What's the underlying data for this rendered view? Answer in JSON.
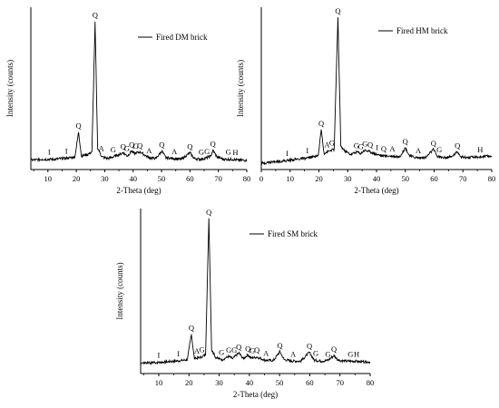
{
  "chart_data": [
    {
      "type": "line",
      "legend": "Fired DM brick",
      "xlabel": "2-Theta (deg)",
      "ylabel": "Intensity (counts)",
      "xlim": [
        4,
        80
      ],
      "xticks": [
        "10",
        "20",
        "30",
        "40",
        "50",
        "60",
        "70",
        "80"
      ],
      "grid": false,
      "legend_position": "top-right",
      "series": [
        {
          "x": [
            4,
            8,
            12,
            15,
            18,
            19.5,
            20.8,
            21.8,
            24,
            25.5,
            26.6,
            27.5,
            29,
            31,
            33,
            34.5,
            36.5,
            38,
            39.5,
            40.5,
            42.5,
            45.5,
            48,
            50.1,
            51.5,
            54,
            57,
            60,
            61.5,
            64,
            66,
            67.3,
            68.1,
            69.5,
            72,
            75,
            77,
            80
          ],
          "y": [
            7,
            8,
            8,
            9,
            10,
            11,
            41,
            12,
            14,
            17,
            175,
            22,
            11,
            9,
            11,
            13,
            16,
            12,
            18,
            15,
            17,
            10,
            9,
            18,
            10,
            9,
            8,
            16,
            9,
            8,
            10,
            12,
            19,
            11,
            8,
            8,
            7,
            7
          ]
        }
      ],
      "peak_labels": [
        {
          "label": "I",
          "x": 10.5,
          "y": 0
        },
        {
          "label": "I",
          "x": 16.5,
          "y": 0
        },
        {
          "label": "Q",
          "x": 20.8,
          "y": 41
        },
        {
          "label": "Q",
          "x": 26.6,
          "y": 175
        },
        {
          "label": "A",
          "x": 28.8,
          "y": 0
        },
        {
          "label": "G",
          "x": 33,
          "y": 0
        },
        {
          "label": "Q",
          "x": 36.5,
          "y": 16
        },
        {
          "label": "G",
          "x": 37.8,
          "y": 0
        },
        {
          "label": "Q",
          "x": 39.5,
          "y": 18
        },
        {
          "label": "Q",
          "x": 42.4,
          "y": 17
        },
        {
          "label": "G",
          "x": 41,
          "y": 0
        },
        {
          "label": "A",
          "x": 45.6,
          "y": 0
        },
        {
          "label": "Q",
          "x": 50.1,
          "y": 18
        },
        {
          "label": "A",
          "x": 54.5,
          "y": 0
        },
        {
          "label": "Q",
          "x": 60,
          "y": 16
        },
        {
          "label": "G",
          "x": 64,
          "y": 0
        },
        {
          "label": "G",
          "x": 66,
          "y": 10
        },
        {
          "label": "Q",
          "x": 68.1,
          "y": 19
        },
        {
          "label": "G",
          "x": 73.5,
          "y": 0
        },
        {
          "label": "H",
          "x": 76,
          "y": 0
        }
      ]
    },
    {
      "type": "line",
      "legend": "Fired HM brick",
      "xlabel": "2-Theta (deg)",
      "ylabel": "Intensity (counts)",
      "xlim": [
        0,
        80
      ],
      "xticks": [
        "0",
        "10",
        "20",
        "30",
        "40",
        "50",
        "60",
        "70",
        "80"
      ],
      "grid": false,
      "legend_position": "top-right",
      "series": [
        {
          "x": [
            0,
            4,
            8,
            12,
            15,
            18,
            19.8,
            20.8,
            21.8,
            23.5,
            25.3,
            26.6,
            27.6,
            29,
            31,
            33.2,
            34.5,
            35.8,
            37,
            38.5,
            40,
            42.5,
            45.5,
            48,
            50,
            51.5,
            54,
            57,
            59.8,
            61.2,
            64,
            66,
            68.1,
            69.5,
            72,
            76,
            80
          ],
          "y": [
            3,
            5,
            6,
            8,
            9,
            11,
            13,
            44,
            15,
            18,
            20,
            180,
            24,
            18,
            14,
            17,
            15,
            19,
            18,
            16,
            14,
            12,
            12,
            11,
            22,
            12,
            10,
            10,
            20,
            11,
            10,
            11,
            17,
            11,
            10,
            11,
            12
          ]
        }
      ],
      "peak_labels": [
        {
          "label": "I",
          "x": 9,
          "y": 0
        },
        {
          "label": "I",
          "x": 16,
          "y": 0
        },
        {
          "label": "Q",
          "x": 20.8,
          "y": 44
        },
        {
          "label": "A",
          "x": 22.8,
          "y": 0
        },
        {
          "label": "G",
          "x": 24.5,
          "y": 0
        },
        {
          "label": "Q",
          "x": 26.6,
          "y": 180
        },
        {
          "label": "G",
          "x": 33,
          "y": 17
        },
        {
          "label": "G",
          "x": 34.5,
          "y": 0
        },
        {
          "label": "G",
          "x": 36,
          "y": 19
        },
        {
          "label": "Q",
          "x": 37.8,
          "y": 0
        },
        {
          "label": "I",
          "x": 40.2,
          "y": 0
        },
        {
          "label": "Q",
          "x": 42.5,
          "y": 0
        },
        {
          "label": "A",
          "x": 45.5,
          "y": 0
        },
        {
          "label": "Q",
          "x": 50,
          "y": 22
        },
        {
          "label": "A",
          "x": 54.5,
          "y": 0
        },
        {
          "label": "Q",
          "x": 59.8,
          "y": 20
        },
        {
          "label": "G",
          "x": 61.8,
          "y": 0
        },
        {
          "label": "Q",
          "x": 68.1,
          "y": 17
        },
        {
          "label": "H",
          "x": 76,
          "y": 0
        }
      ]
    },
    {
      "type": "line",
      "legend": "Fired SM brick",
      "xlabel": "2-Theta (deg)",
      "ylabel": "Intensity (counts)",
      "xlim": [
        4,
        80
      ],
      "xticks": [
        "10",
        "20",
        "30",
        "40",
        "50",
        "60",
        "70",
        "80"
      ],
      "grid": false,
      "legend_position": "top-right",
      "series": [
        {
          "x": [
            4,
            8,
            12,
            15,
            18,
            19.5,
            20.8,
            21.8,
            24,
            25.5,
            26.6,
            27.5,
            29,
            31,
            33.2,
            34.5,
            35.8,
            36.6,
            38,
            39.5,
            40.5,
            42.5,
            45.5,
            48,
            50.1,
            51.5,
            54,
            57,
            59.9,
            61.5,
            64,
            66,
            68,
            69.5,
            72,
            75,
            77,
            80
          ],
          "y": [
            8,
            9,
            10,
            11,
            12,
            13,
            45,
            14,
            16,
            19,
            190,
            25,
            15,
            13,
            17,
            14,
            19,
            21,
            14,
            19,
            15,
            16,
            12,
            12,
            23,
            13,
            11,
            11,
            22,
            12,
            11,
            12,
            18,
            12,
            11,
            11,
            10,
            10
          ]
        }
      ],
      "peak_labels": [
        {
          "label": "I",
          "x": 10,
          "y": 0
        },
        {
          "label": "I",
          "x": 16.5,
          "y": 0
        },
        {
          "label": "Q",
          "x": 20.8,
          "y": 45
        },
        {
          "label": "A",
          "x": 22.6,
          "y": 0
        },
        {
          "label": "G",
          "x": 24.3,
          "y": 0
        },
        {
          "label": "Q",
          "x": 26.6,
          "y": 190
        },
        {
          "label": "G",
          "x": 30.8,
          "y": 0
        },
        {
          "label": "G",
          "x": 33.2,
          "y": 17
        },
        {
          "label": "G",
          "x": 35,
          "y": 0
        },
        {
          "label": "Q",
          "x": 36.5,
          "y": 21
        },
        {
          "label": "Q",
          "x": 39.5,
          "y": 19
        },
        {
          "label": "G",
          "x": 41,
          "y": 0
        },
        {
          "label": "Q",
          "x": 42.5,
          "y": 0
        },
        {
          "label": "A",
          "x": 45.5,
          "y": 0
        },
        {
          "label": "Q",
          "x": 50.1,
          "y": 23
        },
        {
          "label": "A",
          "x": 54.5,
          "y": 0
        },
        {
          "label": "Q",
          "x": 59.9,
          "y": 22
        },
        {
          "label": "G",
          "x": 62,
          "y": 0
        },
        {
          "label": "G",
          "x": 66,
          "y": 12
        },
        {
          "label": "Q",
          "x": 68,
          "y": 18
        },
        {
          "label": "G",
          "x": 73.5,
          "y": 0
        },
        {
          "label": "H",
          "x": 75.5,
          "y": 0
        }
      ]
    }
  ]
}
